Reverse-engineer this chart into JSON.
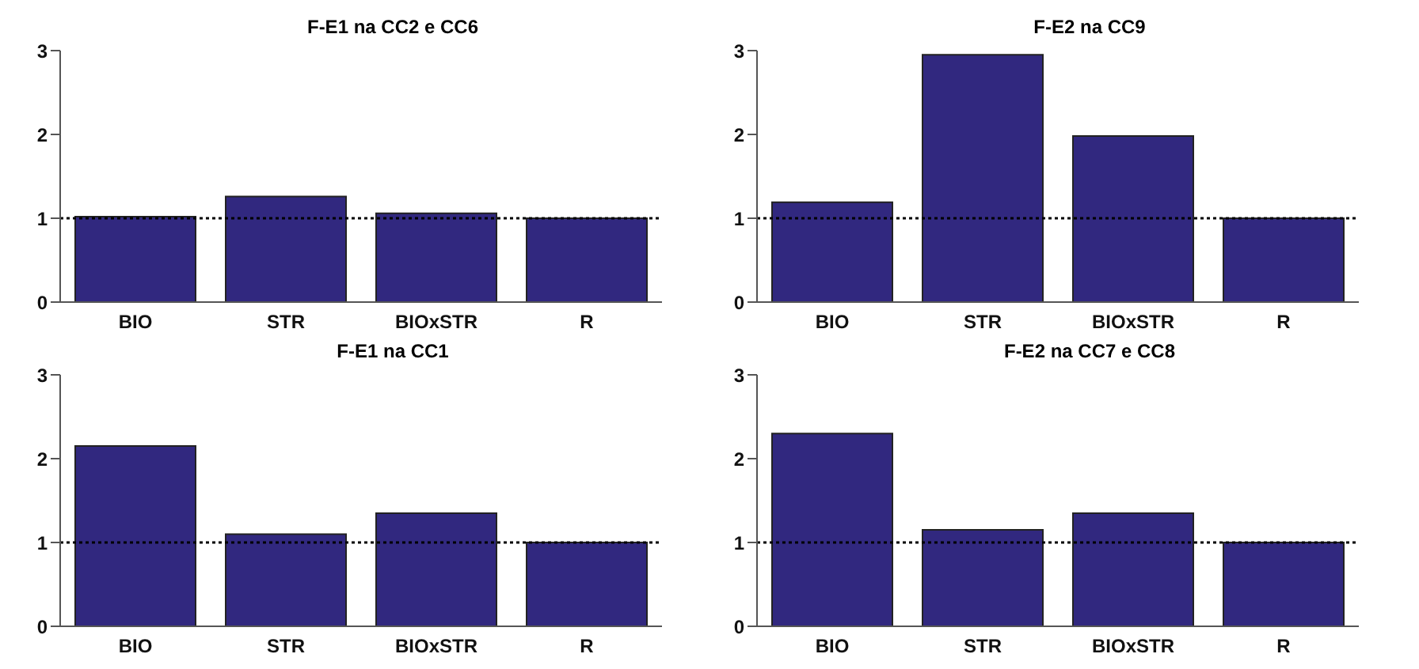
{
  "chart_data": [
    {
      "type": "bar",
      "title": "F-E1 na CC2 e CC6",
      "categories": [
        "BIO",
        "STR",
        "BIOxSTR",
        "R"
      ],
      "values": [
        1.02,
        1.26,
        1.06,
        1.0
      ],
      "color": "#31287f",
      "ylim": [
        0,
        3
      ],
      "yticks": [
        0,
        1,
        2,
        3
      ],
      "ref_lines": [
        {
          "axis": "y",
          "value": 1,
          "color": "#000000",
          "line_style": "dotted"
        }
      ]
    },
    {
      "type": "bar",
      "title": "F-E2 na CC9",
      "categories": [
        "BIO",
        "STR",
        "BIOxSTR",
        "R"
      ],
      "values": [
        1.19,
        2.95,
        1.98,
        1.0
      ],
      "color": "#31287f",
      "ylim": [
        0,
        3
      ],
      "yticks": [
        0,
        1,
        2,
        3
      ],
      "ref_lines": [
        {
          "axis": "y",
          "value": 1,
          "color": "#000000",
          "line_style": "dotted"
        }
      ]
    },
    {
      "type": "bar",
      "title": "F-E1 na CC1",
      "categories": [
        "BIO",
        "STR",
        "BIOxSTR",
        "R"
      ],
      "values": [
        2.15,
        1.1,
        1.35,
        1.0
      ],
      "color": "#31287f",
      "ylim": [
        0,
        3
      ],
      "yticks": [
        0,
        1,
        2,
        3
      ],
      "ref_lines": [
        {
          "axis": "y",
          "value": 1,
          "color": "#000000",
          "line_style": "dotted"
        }
      ]
    },
    {
      "type": "bar",
      "title": "F-E2 na CC7 e CC8",
      "categories": [
        "BIO",
        "STR",
        "BIOxSTR",
        "R"
      ],
      "values": [
        2.3,
        1.15,
        1.35,
        1.0
      ],
      "color": "#31287f",
      "ylim": [
        0,
        3
      ],
      "yticks": [
        0,
        1,
        2,
        3
      ],
      "ref_lines": [
        {
          "axis": "y",
          "value": 1,
          "color": "#000000",
          "line_style": "dotted"
        }
      ]
    }
  ]
}
